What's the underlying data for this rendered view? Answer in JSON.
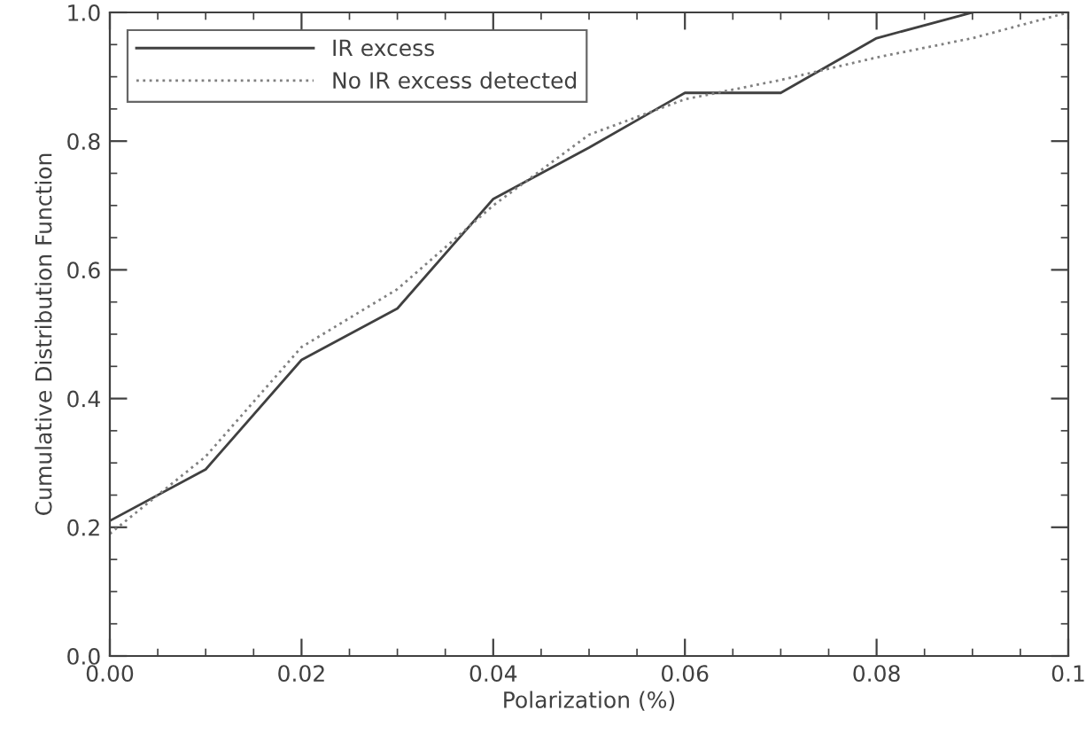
{
  "chart_data": {
    "type": "line",
    "xlabel": "Polarization (%)",
    "ylabel": "Cumulative Distribution Function",
    "series": [
      {
        "name": "IR excess",
        "color": "#404040",
        "line_style": "solid",
        "x": [
          0,
          0.01,
          0.02,
          0.03,
          0.04,
          0.05,
          0.06,
          0.07,
          0.08,
          0.09
        ],
        "values": [
          0.21,
          0.29,
          0.46,
          0.54,
          0.71,
          0.79,
          0.875,
          0.875,
          0.96,
          1.0
        ]
      },
      {
        "name": "No IR excess detected",
        "color": "#808080",
        "line_style": "dotted",
        "x": [
          0,
          0.01,
          0.02,
          0.03,
          0.04,
          0.05,
          0.06,
          0.07,
          0.08,
          0.09,
          0.1
        ],
        "values": [
          0.19,
          0.31,
          0.48,
          0.57,
          0.7,
          0.81,
          0.865,
          0.895,
          0.93,
          0.96,
          1.0
        ]
      }
    ],
    "xlim": [
      0,
      0.1
    ],
    "ylim": [
      0,
      1.0
    ],
    "xticks": [
      {
        "value": 0,
        "label": "0.00"
      },
      0.02,
      0.04,
      0.06,
      0.08,
      0.1
    ],
    "yticks": [
      {
        "value": 0,
        "label": "0.0"
      },
      0.2,
      0.4,
      0.6,
      0.8,
      {
        "value": 1.0,
        "label": "1.0"
      }
    ],
    "legend": "top left",
    "grid": false
  }
}
